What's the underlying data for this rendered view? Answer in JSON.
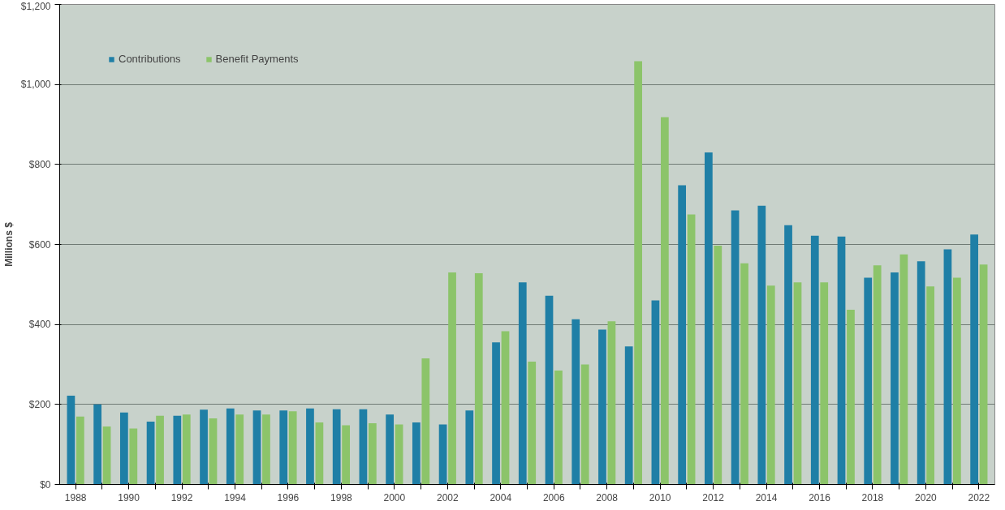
{
  "chart_data": {
    "type": "bar",
    "ylabel": "Millions $",
    "categories": [
      "1988",
      null,
      "1990",
      null,
      "1992",
      null,
      "1994",
      null,
      "1996",
      null,
      "1998",
      null,
      "2000",
      null,
      "2002",
      null,
      "2004",
      null,
      "2006",
      null,
      "2008",
      null,
      "2010",
      null,
      "2012",
      null,
      "2014",
      null,
      "2016",
      null,
      "2018",
      null,
      "2020",
      null,
      "2022"
    ],
    "series": [
      {
        "name": "Contributions",
        "color": "#1f7fa6",
        "values": [
          222,
          200,
          180,
          157,
          172,
          187,
          190,
          185,
          185,
          190,
          188,
          188,
          175,
          155,
          150,
          185,
          355,
          505,
          472,
          413,
          387,
          345,
          460,
          748,
          830,
          685,
          697,
          648,
          622,
          620,
          517,
          530,
          558,
          588,
          625
        ]
      },
      {
        "name": "Benefit Payments",
        "color": "#8cc46a",
        "values": [
          170,
          145,
          140,
          172,
          175,
          165,
          175,
          175,
          183,
          155,
          148,
          153,
          150,
          315,
          530,
          528,
          383,
          307,
          285,
          300,
          408,
          1058,
          918,
          675,
          597,
          553,
          497,
          505,
          505,
          437,
          548,
          575,
          495,
          517,
          550
        ]
      }
    ],
    "ylim": [
      0,
      1200
    ],
    "yticks": [
      {
        "value": 0,
        "label": "$0"
      },
      {
        "value": 200,
        "label": "$200"
      },
      {
        "value": 400,
        "label": "$400"
      },
      {
        "value": 600,
        "label": "$600"
      },
      {
        "value": 800,
        "label": "$800"
      },
      {
        "value": 1000,
        "label": "$1,000"
      },
      {
        "value": 1200,
        "label": "$1,200"
      }
    ],
    "grid": "y",
    "legend": "top left"
  }
}
